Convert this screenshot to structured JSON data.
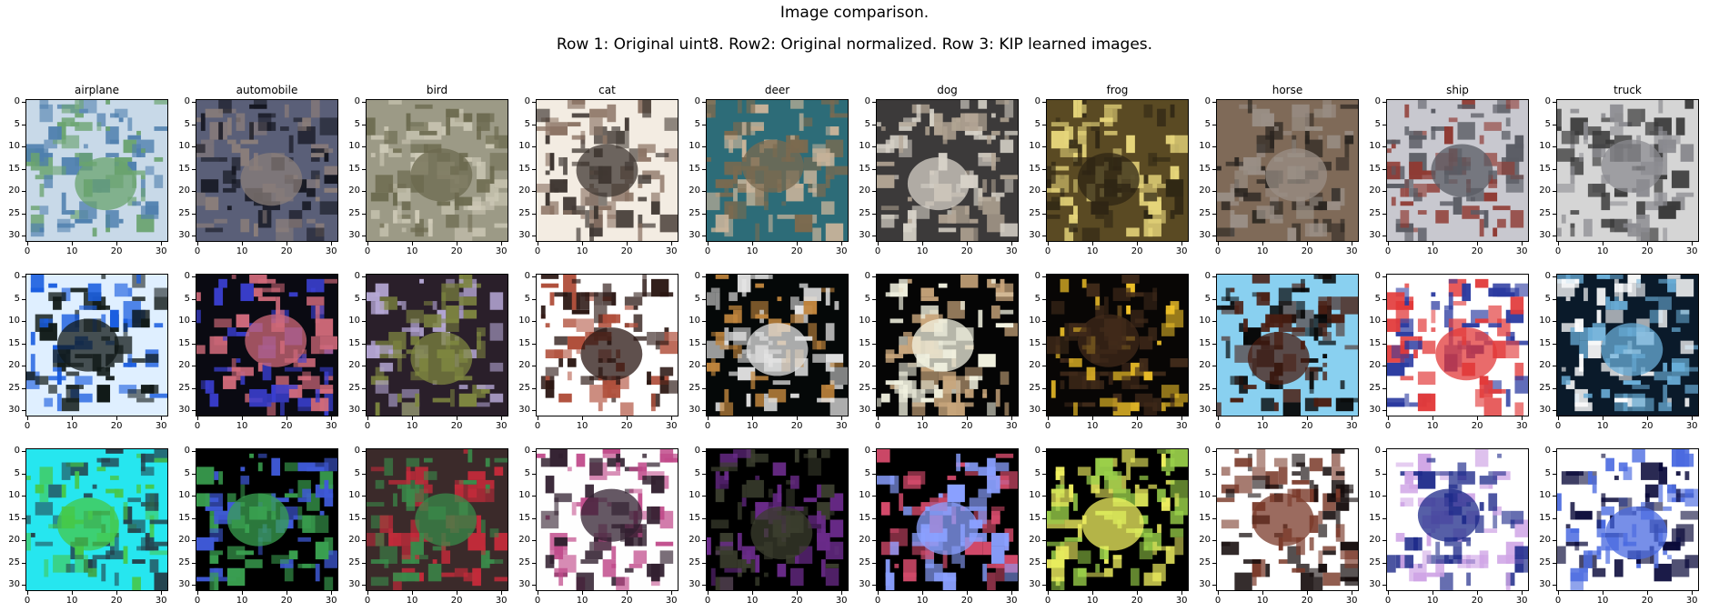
{
  "figure": {
    "title_line1": "Image comparison.",
    "title_line2": "Row 1: Original uint8.  Row2: Original normalized.  Row 3: KIP learned images.",
    "columns": [
      "airplane",
      "automobile",
      "bird",
      "cat",
      "deer",
      "dog",
      "frog",
      "horse",
      "ship",
      "truck"
    ],
    "y_ticks": [
      "0",
      "5",
      "10",
      "15",
      "20",
      "25",
      "30"
    ],
    "x_ticks": [
      "0",
      "10",
      "20",
      "30"
    ],
    "rows": [
      "original-uint8",
      "original-normalized",
      "kip-learned"
    ]
  },
  "palettes": {
    "airplane": [
      [
        "#c8d9e8",
        "#4f7fae",
        "#6aa36f"
      ],
      [
        "#dfefff",
        "#1b5ee0",
        "#111a18"
      ],
      [
        "#26e6ef",
        "#243f4a",
        "#46c84a"
      ]
    ],
    "automobile": [
      [
        "#5a5f78",
        "#141620",
        "#8a7d7a"
      ],
      [
        "#0a0a12",
        "#3a3fd0",
        "#d06a7a"
      ],
      [
        "#000000",
        "#3f5ad8",
        "#3aa050"
      ]
    ],
    "bird": [
      [
        "#9c9a86",
        "#cfcbb8",
        "#6c6a4f"
      ],
      [
        "#2a1f2a",
        "#b6a8d6",
        "#7d8540"
      ],
      [
        "#3b2a2a",
        "#c32b3a",
        "#3a8a4a"
      ]
    ],
    "cat": [
      [
        "#f3ece2",
        "#8c7465",
        "#3f3732"
      ],
      [
        "#ffffff",
        "#b0503c",
        "#2a1612"
      ],
      [
        "#fefefe",
        "#c04a8a",
        "#322030"
      ]
    ],
    "deer": [
      [
        "#2d6c78",
        "#c9b49a",
        "#7b6a4f"
      ],
      [
        "#050808",
        "#c0853d",
        "#e2e2e2"
      ],
      [
        "#000000",
        "#6a2b8a",
        "#3b3e2e"
      ]
    ],
    "dog": [
      [
        "#3c3a3a",
        "#b1a493",
        "#d7d2c8"
      ],
      [
        "#050505",
        "#c9a67c",
        "#f2f2e0"
      ],
      [
        "#000000",
        "#d24a6a",
        "#8aa0ff"
      ]
    ],
    "frog": [
      [
        "#5a4a23",
        "#e6d57a",
        "#2f2614"
      ],
      [
        "#080605",
        "#f1c229",
        "#402a1a"
      ],
      [
        "#000000",
        "#9ad04a",
        "#f0f060"
      ]
    ],
    "horse": [
      [
        "#7f6a58",
        "#2a2520",
        "#9a8f86"
      ],
      [
        "#89d0f0",
        "#070707",
        "#4a1e12"
      ],
      [
        "#ffffff",
        "#140b0b",
        "#7a3a2a"
      ]
    ],
    "ship": [
      [
        "#c8c8cf",
        "#8f3a33",
        "#5a5c64"
      ],
      [
        "#ffffff",
        "#2a3aa0",
        "#e23a3a"
      ],
      [
        "#ffffff",
        "#d0a6e6",
        "#1e2a8a"
      ]
    ],
    "truck": [
      [
        "#d5d5d5",
        "#3a3a3a",
        "#8b8b90"
      ],
      [
        "#0a1a2a",
        "#ffffff",
        "#6aaed8"
      ],
      [
        "#ffffff",
        "#0a0a3a",
        "#4a6ae0"
      ]
    ]
  }
}
